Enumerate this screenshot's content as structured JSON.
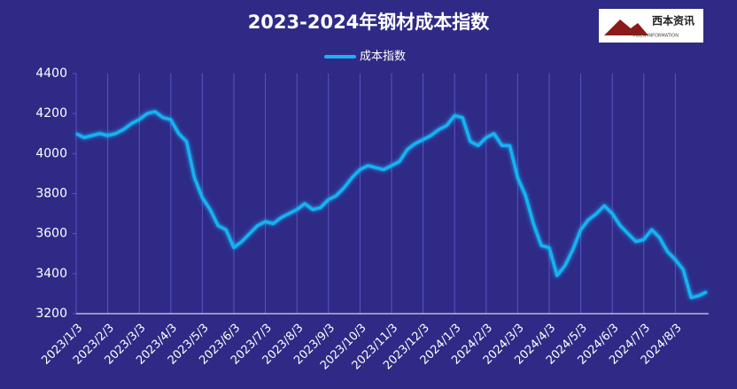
{
  "chart_data": {
    "type": "line",
    "title": "2023-2024年钢材成本指数",
    "categories": [
      "2023/1/3",
      null,
      null,
      null,
      "2023/2/3",
      null,
      null,
      null,
      "2023/3/3",
      null,
      null,
      null,
      "2023/4/3",
      null,
      null,
      null,
      "2023/5/3",
      null,
      null,
      null,
      "2023/6/3",
      null,
      null,
      null,
      "2023/7/3",
      null,
      null,
      null,
      "2023/8/3",
      null,
      null,
      null,
      "2023/9/3",
      null,
      null,
      null,
      "2023/10/3",
      null,
      null,
      null,
      "2023/11/3",
      null,
      null,
      null,
      "2023/12/3",
      null,
      null,
      null,
      "2024/1/3",
      null,
      null,
      null,
      "2024/2/3",
      null,
      null,
      null,
      "2024/3/3",
      null,
      null,
      null,
      "2024/4/3",
      null,
      null,
      null,
      "2024/5/3",
      null,
      null,
      null,
      "2024/6/3",
      null,
      null,
      null,
      "2024/7/3",
      null,
      null,
      null,
      "2024/8/3",
      null,
      null,
      null,
      null
    ],
    "series": [
      {
        "name": "成本指数",
        "color": "#19b2f2",
        "values": [
          4100,
          4080,
          4090,
          4100,
          4090,
          4100,
          4120,
          4150,
          4170,
          4200,
          4210,
          4180,
          4170,
          4100,
          4060,
          3880,
          3780,
          3720,
          3640,
          3620,
          3530,
          3560,
          3600,
          3640,
          3660,
          3650,
          3680,
          3700,
          3720,
          3750,
          3720,
          3730,
          3770,
          3790,
          3830,
          3880,
          3920,
          3940,
          3930,
          3920,
          3940,
          3960,
          4020,
          4050,
          4070,
          4090,
          4120,
          4140,
          4190,
          4180,
          4060,
          4040,
          4080,
          4100,
          4040,
          4040,
          3880,
          3790,
          3650,
          3540,
          3530,
          3390,
          3440,
          3520,
          3620,
          3670,
          3700,
          3740,
          3700,
          3640,
          3600,
          3560,
          3570,
          3620,
          3580,
          3510,
          3470,
          3420,
          3280,
          3290,
          3310
        ]
      }
    ],
    "ylim": [
      3200,
      4400
    ],
    "yticks": [
      3200,
      3400,
      3600,
      3800,
      4000,
      4200,
      4400
    ],
    "grid": true,
    "legend": "top"
  },
  "logo": {
    "name": "西本资讯",
    "subtitle": "XIBEN INFORMATION"
  }
}
